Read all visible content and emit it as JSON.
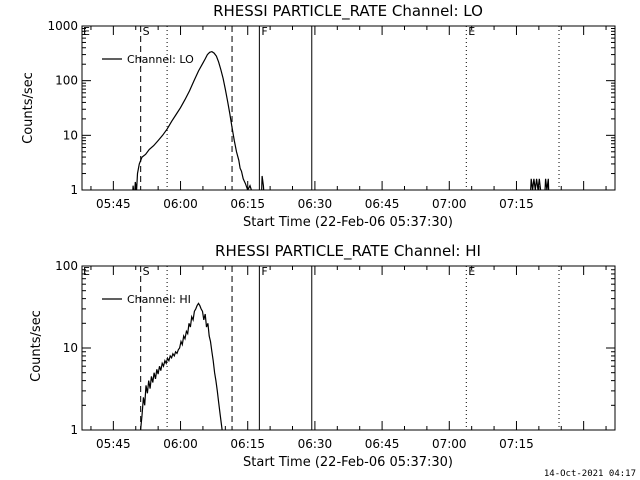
{
  "footer": {
    "timestamp": "14-Oct-2021 04:17"
  },
  "chart_data": [
    {
      "type": "line",
      "title": "RHESSI PARTICLE_RATE Channel: LO",
      "xlabel": "Start Time (22-Feb-06 05:37:30)",
      "ylabel": "Counts/sec",
      "yscale": "log",
      "ylim": [
        1,
        1000
      ],
      "y_ticks": [
        {
          "v": 1,
          "label": "1"
        },
        {
          "v": 10,
          "label": "10"
        },
        {
          "v": 100,
          "label": "100"
        },
        {
          "v": 1000,
          "label": "1000"
        }
      ],
      "xlim_minutes": [
        -22,
        97
      ],
      "x_ticks": [
        {
          "label": "05:45",
          "min": -15
        },
        {
          "label": "06:00",
          "min": 0
        },
        {
          "label": "06:15",
          "min": 15
        },
        {
          "label": "06:30",
          "min": 30
        },
        {
          "label": "06:45",
          "min": 45
        },
        {
          "label": "07:00",
          "min": 60
        },
        {
          "label": "07:15",
          "min": 75
        }
      ],
      "grid": false,
      "legend": {
        "position": "top-left",
        "label": "Channel: LO"
      },
      "event_lines": [
        {
          "min": -8.9,
          "style": "dashed",
          "label": "S"
        },
        {
          "min": -3.0,
          "style": "dotted",
          "label": ""
        },
        {
          "min": 11.5,
          "style": "dashed",
          "label": ""
        },
        {
          "min": 17.6,
          "style": "solid",
          "label": "F"
        },
        {
          "min": 29.3,
          "style": "solid",
          "label": ""
        },
        {
          "min": 63.8,
          "style": "dotted",
          "label": "E"
        },
        {
          "min": 84.5,
          "style": "dotted",
          "label": ""
        }
      ],
      "corner_labels": [
        {
          "label": "E",
          "min": -22
        }
      ],
      "series": [
        {
          "name": "Channel: LO",
          "points": [
            [
              -10.8,
              0.6
            ],
            [
              -10.6,
              1.2
            ],
            [
              -10.3,
              0.7
            ],
            [
              -10.1,
              1.4
            ],
            [
              -9.8,
              1.0
            ],
            [
              -9.6,
              2.0
            ],
            [
              -9.2,
              3.0
            ],
            [
              -8.6,
              4.0
            ],
            [
              -7.8,
              4.5
            ],
            [
              -7,
              5.5
            ],
            [
              -6,
              6.5
            ],
            [
              -5,
              8.0
            ],
            [
              -4,
              10
            ],
            [
              -3,
              13
            ],
            [
              -2,
              18
            ],
            [
              -1,
              24
            ],
            [
              0,
              32
            ],
            [
              1,
              45
            ],
            [
              2,
              65
            ],
            [
              3,
              100
            ],
            [
              4,
              150
            ],
            [
              5,
              210
            ],
            [
              5.5,
              250
            ],
            [
              6,
              300
            ],
            [
              6.5,
              330
            ],
            [
              7,
              340
            ],
            [
              7.5,
              320
            ],
            [
              8,
              280
            ],
            [
              8.5,
              220
            ],
            [
              9,
              160
            ],
            [
              9.5,
              110
            ],
            [
              10,
              70
            ],
            [
              10.5,
              42
            ],
            [
              11,
              25
            ],
            [
              11.5,
              14
            ],
            [
              12,
              8
            ],
            [
              12.5,
              5
            ],
            [
              13,
              3.5
            ],
            [
              13.3,
              2.5
            ],
            [
              13.6,
              2.2
            ],
            [
              14,
              1.6
            ],
            [
              14.5,
              1.3
            ],
            [
              15,
              1.0
            ],
            [
              15.5,
              1.2
            ],
            [
              16,
              0.9
            ],
            [
              16.3,
              0.5
            ],
            [
              18.0,
              0.5
            ],
            [
              18.2,
              1.8
            ],
            [
              18.5,
              1.2
            ],
            [
              18.8,
              0.5
            ],
            [
              78.0,
              0.5
            ],
            [
              78.3,
              1.6
            ],
            [
              78.6,
              1.0
            ],
            [
              78.9,
              1.6
            ],
            [
              79.2,
              1.0
            ],
            [
              79.5,
              1.6
            ],
            [
              79.8,
              1.0
            ],
            [
              80.1,
              1.6
            ],
            [
              80.4,
              1.0
            ],
            [
              80.6,
              0.5
            ],
            [
              81.2,
              0.5
            ],
            [
              81.5,
              1.6
            ],
            [
              81.8,
              1.0
            ],
            [
              82.1,
              1.6
            ],
            [
              82.3,
              0.5
            ]
          ]
        }
      ]
    },
    {
      "type": "line",
      "title": "RHESSI PARTICLE_RATE Channel: HI",
      "xlabel": "Start Time (22-Feb-06 05:37:30)",
      "ylabel": "Counts/sec",
      "yscale": "log",
      "ylim": [
        1,
        100
      ],
      "y_ticks": [
        {
          "v": 1,
          "label": "1"
        },
        {
          "v": 10,
          "label": "10"
        },
        {
          "v": 100,
          "label": "100"
        }
      ],
      "xlim_minutes": [
        -22,
        97
      ],
      "x_ticks": [
        {
          "label": "05:45",
          "min": -15
        },
        {
          "label": "06:00",
          "min": 0
        },
        {
          "label": "06:15",
          "min": 15
        },
        {
          "label": "06:30",
          "min": 30
        },
        {
          "label": "06:45",
          "min": 45
        },
        {
          "label": "07:00",
          "min": 60
        },
        {
          "label": "07:15",
          "min": 75
        }
      ],
      "grid": false,
      "legend": {
        "position": "top-left",
        "label": "Channel: HI"
      },
      "event_lines": [
        {
          "min": -8.9,
          "style": "dashed",
          "label": "S"
        },
        {
          "min": -3.0,
          "style": "dotted",
          "label": ""
        },
        {
          "min": 11.5,
          "style": "dashed",
          "label": ""
        },
        {
          "min": 17.6,
          "style": "solid",
          "label": "F"
        },
        {
          "min": 29.3,
          "style": "solid",
          "label": ""
        },
        {
          "min": 63.8,
          "style": "dotted",
          "label": "E"
        },
        {
          "min": 84.5,
          "style": "dotted",
          "label": ""
        }
      ],
      "corner_labels": [
        {
          "label": "E",
          "min": -22
        }
      ],
      "series": [
        {
          "name": "Channel: HI",
          "points": [
            [
              -9.0,
              0.9
            ],
            [
              -8.6,
              1.5
            ],
            [
              -8.3,
              2.5
            ],
            [
              -8.0,
              2.0
            ],
            [
              -7.7,
              3.5
            ],
            [
              -7.4,
              2.8
            ],
            [
              -7.1,
              4.0
            ],
            [
              -6.8,
              3.2
            ],
            [
              -6.5,
              4.5
            ],
            [
              -6.2,
              3.8
            ],
            [
              -5.9,
              5.0
            ],
            [
              -5.6,
              4.2
            ],
            [
              -5.3,
              5.5
            ],
            [
              -5.0,
              4.8
            ],
            [
              -4.7,
              6.0
            ],
            [
              -4.4,
              5.3
            ],
            [
              -4.1,
              6.5
            ],
            [
              -3.8,
              6.0
            ],
            [
              -3.5,
              7.0
            ],
            [
              -3.2,
              6.5
            ],
            [
              -2.9,
              7.5
            ],
            [
              -2.6,
              7.0
            ],
            [
              -2.3,
              8.0
            ],
            [
              -2.0,
              7.6
            ],
            [
              -1.7,
              8.5
            ],
            [
              -1.4,
              8.0
            ],
            [
              -1.1,
              9.0
            ],
            [
              -0.8,
              8.6
            ],
            [
              -0.5,
              9.5
            ],
            [
              -0.2,
              10
            ],
            [
              0.1,
              12
            ],
            [
              0.4,
              11
            ],
            [
              0.7,
              14
            ],
            [
              1.0,
              13
            ],
            [
              1.3,
              16
            ],
            [
              1.6,
              15
            ],
            [
              1.9,
              20
            ],
            [
              2.2,
              18
            ],
            [
              2.5,
              24
            ],
            [
              2.8,
              22
            ],
            [
              3.1,
              28
            ],
            [
              3.4,
              30
            ],
            [
              3.7,
              33
            ],
            [
              4.0,
              35
            ],
            [
              4.3,
              33
            ],
            [
              4.6,
              30
            ],
            [
              4.9,
              28
            ],
            [
              5.2,
              22
            ],
            [
              5.5,
              26
            ],
            [
              5.8,
              18
            ],
            [
              6.1,
              20
            ],
            [
              6.4,
              14
            ],
            [
              6.7,
              12
            ],
            [
              7.0,
              9
            ],
            [
              7.3,
              7
            ],
            [
              7.6,
              5
            ],
            [
              7.9,
              4
            ],
            [
              8.2,
              3
            ],
            [
              8.5,
              2.2
            ],
            [
              8.8,
              1.6
            ],
            [
              9.1,
              1.2
            ],
            [
              9.4,
              0.9
            ]
          ]
        }
      ]
    }
  ]
}
